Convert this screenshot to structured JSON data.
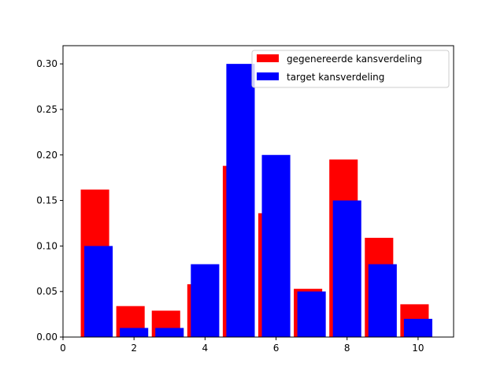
{
  "chart_data": {
    "type": "bar",
    "xlim": [
      0,
      11
    ],
    "ylim": [
      0,
      0.32
    ],
    "x_ticks": [
      0,
      2,
      4,
      6,
      8,
      10
    ],
    "y_ticks": [
      0.0,
      0.05,
      0.1,
      0.15,
      0.2,
      0.25,
      0.3
    ],
    "x_tick_labels": [
      "0",
      "2",
      "4",
      "6",
      "8",
      "10"
    ],
    "y_tick_labels": [
      "0.00",
      "0.05",
      "0.10",
      "0.15",
      "0.20",
      "0.25",
      "0.30"
    ],
    "legend_position": "top-right",
    "series": [
      {
        "name": "gegenereerde kansverdeling",
        "color": "#ff0000",
        "x": [
          1,
          2,
          3,
          4,
          5,
          6,
          7,
          8,
          9,
          10
        ],
        "values": [
          0.162,
          0.034,
          0.029,
          0.058,
          0.188,
          0.136,
          0.053,
          0.195,
          0.109,
          0.036
        ]
      },
      {
        "name": "target kansverdeling",
        "color": "#0000ff",
        "x": [
          1,
          2,
          3,
          4,
          5,
          6,
          7,
          8,
          9,
          10
        ],
        "values": [
          0.1,
          0.01,
          0.01,
          0.08,
          0.3,
          0.2,
          0.05,
          0.15,
          0.08,
          0.02
        ]
      }
    ]
  }
}
